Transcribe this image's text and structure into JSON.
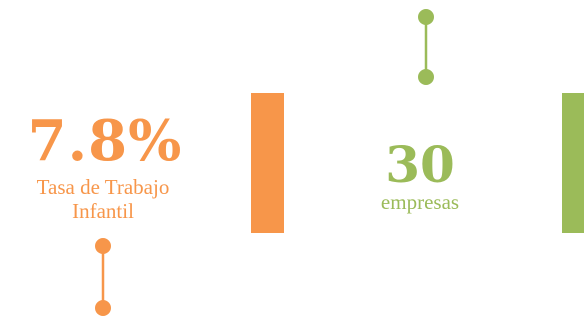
{
  "stat_1": {
    "value": "7.8%",
    "label_line1": "Tasa de Trabajo",
    "label_line2": "Infantil",
    "color": "#f7964a"
  },
  "stat_2": {
    "value": "30",
    "label": "empresas",
    "color": "#9bbb59"
  },
  "icons": {
    "connector_1": "vertical-pin-connector-icon",
    "connector_2": "vertical-pin-connector-icon"
  }
}
